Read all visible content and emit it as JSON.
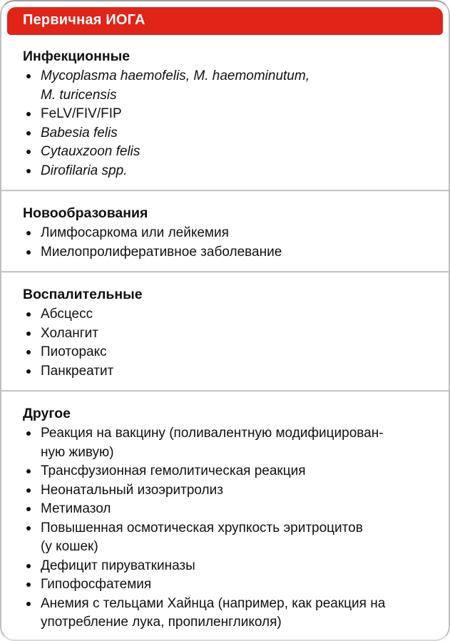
{
  "card": {
    "header": {
      "title": "Первичная ИОГА"
    },
    "colors": {
      "header_bg": "#e02417",
      "header_text": "#ffffff",
      "body_text": "#111111",
      "divider": "#c8c8c8",
      "border": "#b3b3b3"
    },
    "sections": [
      {
        "title": "Инфекционные",
        "items": [
          {
            "text": "Mycoplasma haemofelis, M. haemominutum,\nM. turicensis"
          },
          {
            "text": "FeLV/FIV/FIP"
          },
          {
            "text": "Babesia felis"
          },
          {
            "text": "Cytauxzoon felis"
          },
          {
            "text": "Dirofilaria spp."
          }
        ]
      },
      {
        "title": "Новообразования",
        "items": [
          {
            "text": "Лимфосаркома или лейкемия"
          },
          {
            "text": "Миелопролиферативное заболевание"
          }
        ]
      },
      {
        "title": "Воспалительные",
        "items": [
          {
            "text": "Абсцесс"
          },
          {
            "text": "Холангит"
          },
          {
            "text": "Пиоторакс"
          },
          {
            "text": "Панкреатит"
          }
        ]
      },
      {
        "title": "Другое",
        "items": [
          {
            "text": "Реакция на вакцину (поливалентную модифицирован-\nную живую)"
          },
          {
            "text": "Трансфузионная гемолитическая реакция"
          },
          {
            "text": "Неонатальный изоэритролиз"
          },
          {
            "text": "Метимазол"
          },
          {
            "text": "Повышенная осмотическая хрупкость эритроцитов\n(у кошек)"
          },
          {
            "text": "Дефицит пируваткиназы"
          },
          {
            "text": "Гипофосфатемия"
          },
          {
            "text": "Анемия с тельцами Хайнца (например, как реакция на\nупотребление лука, пропиленгликоля)"
          }
        ]
      }
    ]
  }
}
